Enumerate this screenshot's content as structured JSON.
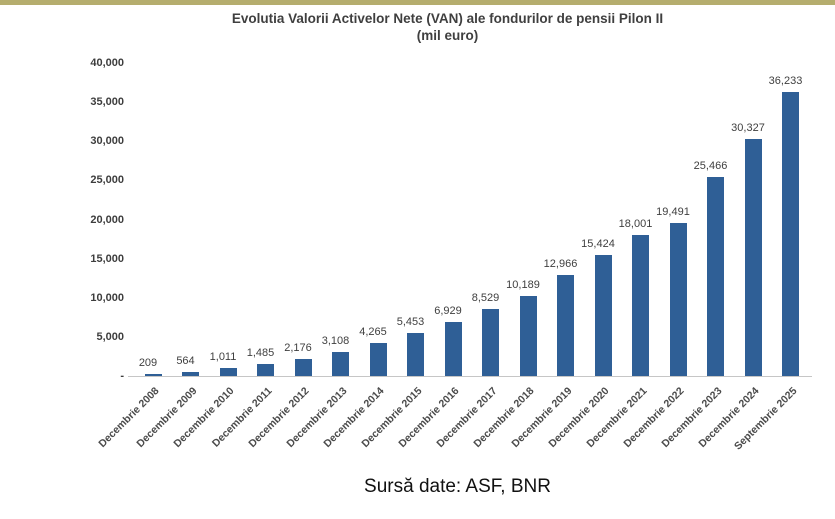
{
  "page": {
    "top_strip_color": "#b5ad6e",
    "background_color": "#ffffff"
  },
  "chart_data": {
    "type": "bar",
    "title": "Evolutia Valorii Activelor Nete (VAN) ale fondurilor de pensii Pilon II",
    "subtitle": "(mil euro)",
    "categories": [
      "Decembrie 2008",
      "Decembrie 2009",
      "Decembrie 2010",
      "Decembrie 2011",
      "Decembrie 2012",
      "Decembrie 2013",
      "Decembrie 2014",
      "Decembrie 2015",
      "Decembrie 2016",
      "Decembrie 2017",
      "Decembrie 2018",
      "Decembrie 2019",
      "Decembrie 2020",
      "Decembrie 2021",
      "Decembrie 2022",
      "Decembrie 2023",
      "Decembrie 2024",
      "Septembrie 2025"
    ],
    "values": [
      209,
      564,
      1011,
      1485,
      2176,
      3108,
      4265,
      5453,
      6929,
      8529,
      10189,
      12966,
      15424,
      18001,
      19491,
      25466,
      30327,
      36233
    ],
    "value_labels": [
      "209",
      "564",
      "1,011",
      "1,485",
      "2,176",
      "3,108",
      "4,265",
      "5,453",
      "6,929",
      "8,529",
      "10,189",
      "12,966",
      "15,424",
      "18,001",
      "19,491",
      "25,466",
      "30,327",
      "36,233"
    ],
    "y_tick_values": [
      40000,
      35000,
      30000,
      25000,
      20000,
      15000,
      10000,
      5000,
      0
    ],
    "y_tick_labels": [
      "40,000",
      "35,000",
      "30,000",
      "25,000",
      "20,000",
      "15,000",
      "10,000",
      "5,000",
      "-"
    ],
    "ylim": [
      0,
      40000
    ],
    "bar_color": "#2f5f96",
    "grid": false,
    "legend": false,
    "xlabel": "",
    "ylabel": ""
  },
  "caption": "Sursă date: ASF, BNR"
}
